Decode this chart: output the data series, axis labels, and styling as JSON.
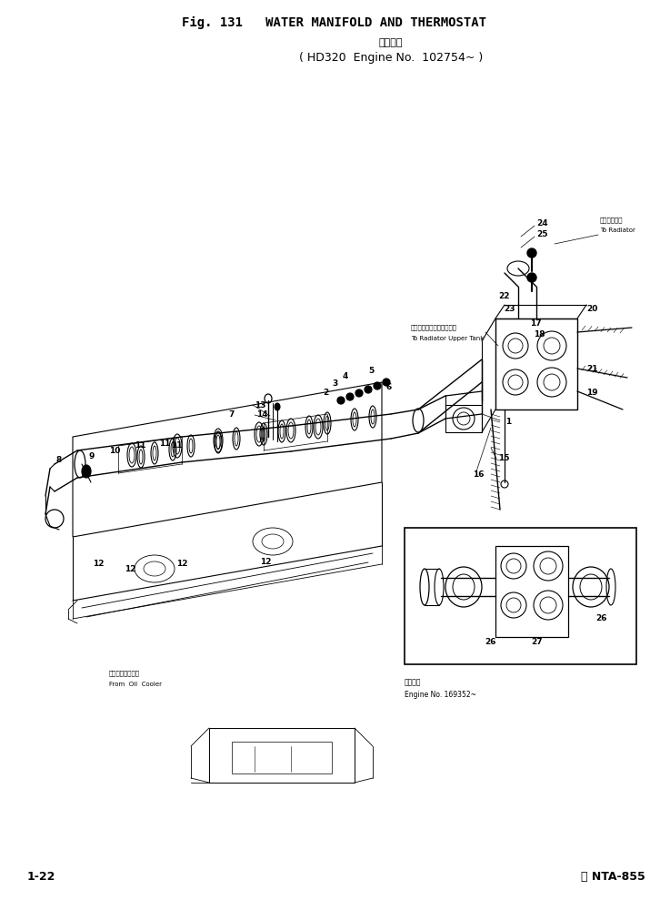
{
  "title_line1": "Fig. 131   WATER MANIFOLD AND THERMOSTAT",
  "title_kanji": "通用号機",
  "title_sub": "HD320  Engine No.  102754~",
  "footer_left": "1-22",
  "footer_right": "ⓓ NTA-855",
  "bg_color": "#ffffff",
  "fig_width": 7.37,
  "fig_height": 10.0,
  "dpi": 100,
  "text_color": "#000000",
  "line_color": "#000000"
}
